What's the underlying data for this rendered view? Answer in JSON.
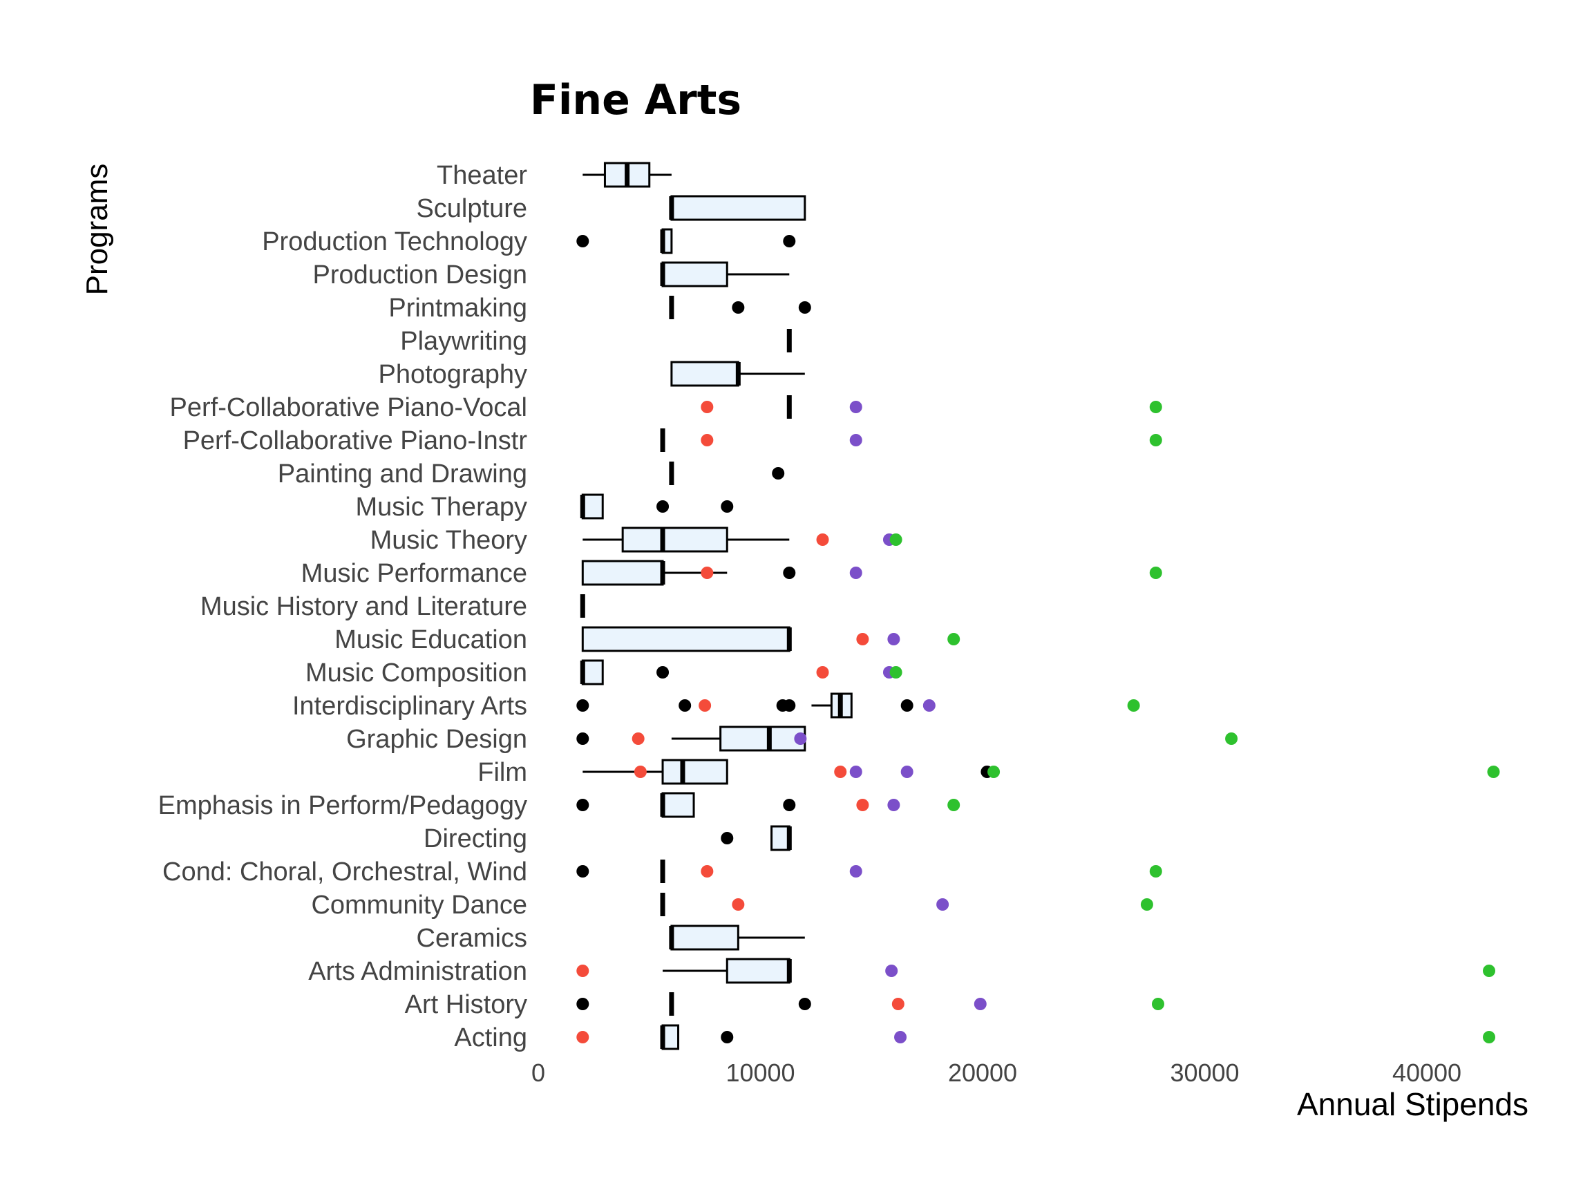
{
  "chart_data": {
    "type": "boxplot",
    "title": "Fine Arts",
    "xlabel": "Annual Stipends",
    "ylabel": "Programs",
    "xlim": [
      0,
      44000
    ],
    "xticks": [
      0,
      10000,
      20000,
      30000,
      40000
    ],
    "xtick_labels": [
      "0",
      "10000",
      "20000",
      "30000",
      "40000"
    ],
    "grid": false,
    "legend": "none",
    "colors": {
      "box_fill": "#eaf4fd",
      "box_stroke": "#000000",
      "point_black": "#000000",
      "point_red": "#f44b3a",
      "point_purple": "#7b4fc9",
      "point_green": "#2ec12e"
    },
    "categories": [
      "Theater",
      "Sculpture",
      "Production Technology",
      "Production Design",
      "Printmaking",
      "Playwriting",
      "Photography",
      "Perf-Collaborative Piano-Vocal",
      "Perf-Collaborative Piano-Instr",
      "Painting and Drawing",
      "Music Therapy",
      "Music Theory",
      "Music Performance",
      "Music History and Literature",
      "Music Education",
      "Music Composition",
      "Interdisciplinary Arts",
      "Graphic Design",
      "Film",
      "Emphasis in Perform/Pedagogy",
      "Directing",
      "Cond: Choral, Orchestral, Wind",
      "Community Dance",
      "Ceramics",
      "Arts Administration",
      "Art History",
      "Acting"
    ],
    "boxes": [
      {
        "min": 2000,
        "q1": 3000,
        "median": 4000,
        "q3": 5000,
        "max": 6000
      },
      {
        "min": 6000,
        "q1": 6000,
        "median": 6000,
        "q3": 12000,
        "max": 12000
      },
      {
        "min": 5600,
        "q1": 5600,
        "median": 5600,
        "q3": 6000,
        "max": 6000
      },
      {
        "min": 5600,
        "q1": 5600,
        "median": 5600,
        "q3": 8500,
        "max": 11300
      },
      {
        "min": 6000,
        "q1": 6000,
        "median": 6000,
        "q3": 6000,
        "max": 6000
      },
      {
        "min": 11300,
        "q1": 11300,
        "median": 11300,
        "q3": 11300,
        "max": 11300
      },
      {
        "min": 6000,
        "q1": 6000,
        "median": 9000,
        "q3": 9000,
        "max": 12000
      },
      {
        "min": 11300,
        "q1": 11300,
        "median": 11300,
        "q3": 11300,
        "max": 11300
      },
      {
        "min": 5600,
        "q1": 5600,
        "median": 5600,
        "q3": 5600,
        "max": 5600
      },
      {
        "min": 6000,
        "q1": 6000,
        "median": 6000,
        "q3": 6000,
        "max": 6000
      },
      {
        "min": 2000,
        "q1": 2000,
        "median": 2000,
        "q3": 2900,
        "max": 2900
      },
      {
        "min": 2000,
        "q1": 3800,
        "median": 5600,
        "q3": 8500,
        "max": 11300
      },
      {
        "min": 2000,
        "q1": 2000,
        "median": 5600,
        "q3": 5600,
        "max": 8500
      },
      {
        "min": 2000,
        "q1": 2000,
        "median": 2000,
        "q3": 2000,
        "max": 2000
      },
      {
        "min": 2000,
        "q1": 2000,
        "median": 11300,
        "q3": 11300,
        "max": 11300
      },
      {
        "min": 2000,
        "q1": 2000,
        "median": 2000,
        "q3": 2900,
        "max": 2900
      },
      {
        "min": 12300,
        "q1": 13200,
        "median": 13600,
        "q3": 14100,
        "max": 14100
      },
      {
        "min": 6000,
        "q1": 8200,
        "median": 10400,
        "q3": 12000,
        "max": 12000
      },
      {
        "min": 2000,
        "q1": 5600,
        "median": 6500,
        "q3": 8500,
        "max": 8500
      },
      {
        "min": 5600,
        "q1": 5600,
        "median": 5600,
        "q3": 7000,
        "max": 7000
      },
      {
        "min": 10500,
        "q1": 10500,
        "median": 11300,
        "q3": 11300,
        "max": 11300
      },
      {
        "min": 5600,
        "q1": 5600,
        "median": 5600,
        "q3": 5600,
        "max": 5600
      },
      {
        "min": 5600,
        "q1": 5600,
        "median": 5600,
        "q3": 5600,
        "max": 5600
      },
      {
        "min": 6000,
        "q1": 6000,
        "median": 6000,
        "q3": 9000,
        "max": 12000
      },
      {
        "min": 5600,
        "q1": 8500,
        "median": 11300,
        "q3": 11300,
        "max": 11300
      },
      {
        "min": 6000,
        "q1": 6000,
        "median": 6000,
        "q3": 6000,
        "max": 6000
      },
      {
        "min": 5600,
        "q1": 5600,
        "median": 5600,
        "q3": 6300,
        "max": 6300
      }
    ],
    "points": [
      [],
      [],
      [
        {
          "x": 2000,
          "c": "point_black"
        },
        {
          "x": 11300,
          "c": "point_black"
        }
      ],
      [],
      [
        {
          "x": 9000,
          "c": "point_black"
        },
        {
          "x": 12000,
          "c": "point_black"
        }
      ],
      [],
      [],
      [
        {
          "x": 7600,
          "c": "point_red"
        },
        {
          "x": 14300,
          "c": "point_purple"
        },
        {
          "x": 27800,
          "c": "point_green"
        }
      ],
      [
        {
          "x": 7600,
          "c": "point_red"
        },
        {
          "x": 14300,
          "c": "point_purple"
        },
        {
          "x": 27800,
          "c": "point_green"
        }
      ],
      [
        {
          "x": 10800,
          "c": "point_black"
        }
      ],
      [
        {
          "x": 5600,
          "c": "point_black"
        },
        {
          "x": 8500,
          "c": "point_black"
        }
      ],
      [
        {
          "x": 12800,
          "c": "point_red"
        },
        {
          "x": 15800,
          "c": "point_purple"
        },
        {
          "x": 16100,
          "c": "point_green"
        }
      ],
      [
        {
          "x": 7600,
          "c": "point_red"
        },
        {
          "x": 11300,
          "c": "point_black"
        },
        {
          "x": 14300,
          "c": "point_purple"
        },
        {
          "x": 27800,
          "c": "point_green"
        }
      ],
      [],
      [
        {
          "x": 14600,
          "c": "point_red"
        },
        {
          "x": 16000,
          "c": "point_purple"
        },
        {
          "x": 18700,
          "c": "point_green"
        }
      ],
      [
        {
          "x": 5600,
          "c": "point_black"
        },
        {
          "x": 12800,
          "c": "point_red"
        },
        {
          "x": 15800,
          "c": "point_purple"
        },
        {
          "x": 16100,
          "c": "point_green"
        }
      ],
      [
        {
          "x": 2000,
          "c": "point_black"
        },
        {
          "x": 6600,
          "c": "point_black"
        },
        {
          "x": 7500,
          "c": "point_red"
        },
        {
          "x": 11000,
          "c": "point_black"
        },
        {
          "x": 11300,
          "c": "point_black"
        },
        {
          "x": 16600,
          "c": "point_black"
        },
        {
          "x": 17600,
          "c": "point_purple"
        },
        {
          "x": 26800,
          "c": "point_green"
        }
      ],
      [
        {
          "x": 2000,
          "c": "point_black"
        },
        {
          "x": 4500,
          "c": "point_red"
        },
        {
          "x": 11800,
          "c": "point_purple"
        },
        {
          "x": 31200,
          "c": "point_green"
        }
      ],
      [
        {
          "x": 4600,
          "c": "point_red"
        },
        {
          "x": 13600,
          "c": "point_red"
        },
        {
          "x": 14300,
          "c": "point_purple"
        },
        {
          "x": 16600,
          "c": "point_purple"
        },
        {
          "x": 20200,
          "c": "point_black"
        },
        {
          "x": 20500,
          "c": "point_green"
        },
        {
          "x": 43000,
          "c": "point_green"
        }
      ],
      [
        {
          "x": 2000,
          "c": "point_black"
        },
        {
          "x": 11300,
          "c": "point_black"
        },
        {
          "x": 14600,
          "c": "point_red"
        },
        {
          "x": 16000,
          "c": "point_purple"
        },
        {
          "x": 18700,
          "c": "point_green"
        }
      ],
      [
        {
          "x": 8500,
          "c": "point_black"
        }
      ],
      [
        {
          "x": 2000,
          "c": "point_black"
        },
        {
          "x": 7600,
          "c": "point_red"
        },
        {
          "x": 14300,
          "c": "point_purple"
        },
        {
          "x": 27800,
          "c": "point_green"
        }
      ],
      [
        {
          "x": 9000,
          "c": "point_red"
        },
        {
          "x": 18200,
          "c": "point_purple"
        },
        {
          "x": 27400,
          "c": "point_green"
        }
      ],
      [],
      [
        {
          "x": 2000,
          "c": "point_red"
        },
        {
          "x": 15900,
          "c": "point_purple"
        },
        {
          "x": 42800,
          "c": "point_green"
        }
      ],
      [
        {
          "x": 2000,
          "c": "point_black"
        },
        {
          "x": 12000,
          "c": "point_black"
        },
        {
          "x": 16200,
          "c": "point_red"
        },
        {
          "x": 19900,
          "c": "point_purple"
        },
        {
          "x": 27900,
          "c": "point_green"
        }
      ],
      [
        {
          "x": 2000,
          "c": "point_red"
        },
        {
          "x": 8500,
          "c": "point_black"
        },
        {
          "x": 16300,
          "c": "point_purple"
        },
        {
          "x": 42800,
          "c": "point_green"
        }
      ]
    ]
  }
}
